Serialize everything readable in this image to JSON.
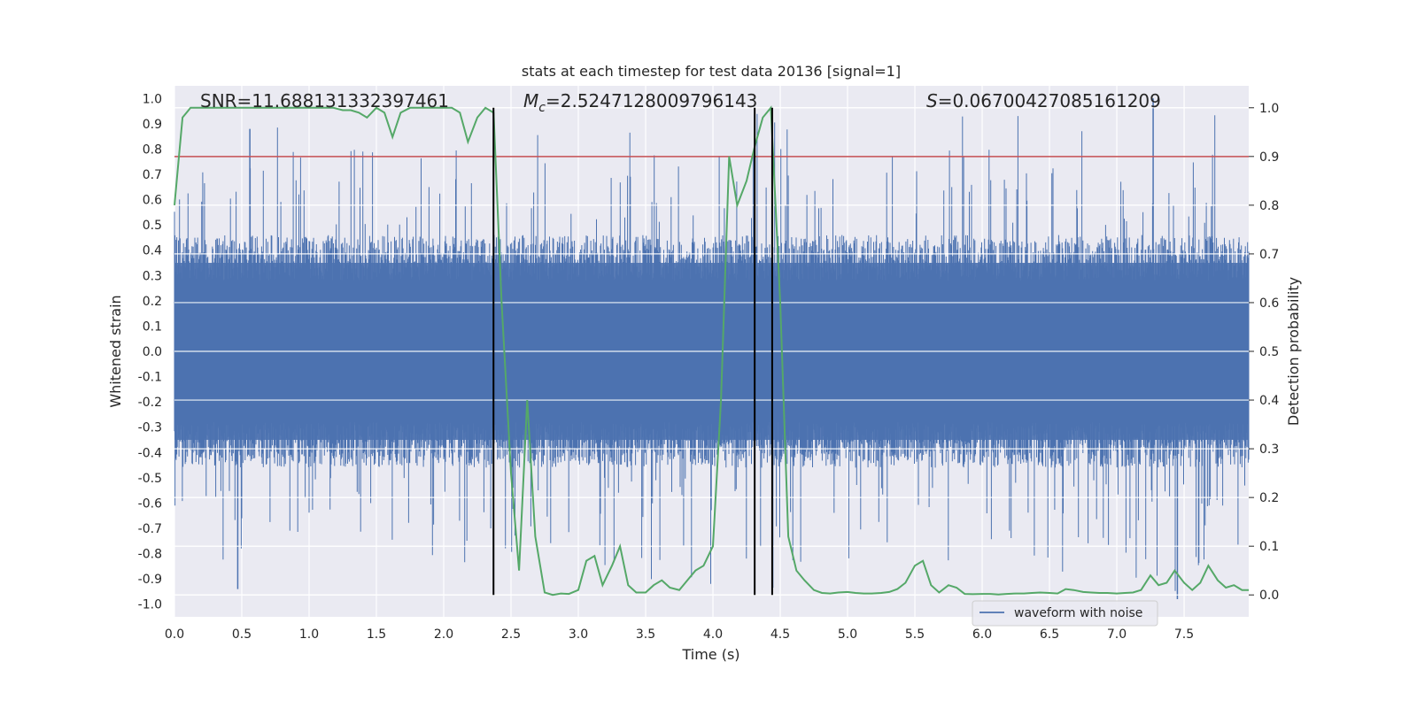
{
  "chart_data": {
    "type": "line",
    "title": "stats at each timestep for test data 20136 [signal=1]",
    "xlabel": "Time (s)",
    "ylabel": "Whitened strain",
    "y2label": "Detection probability",
    "xlim": [
      0.0,
      7.98
    ],
    "ylim": [
      -1.05,
      1.05
    ],
    "y2lim": [
      -0.045,
      1.045
    ],
    "xticks": [
      "0.0",
      "0.5",
      "1.0",
      "1.5",
      "2.0",
      "2.5",
      "3.0",
      "3.5",
      "4.0",
      "4.5",
      "5.0",
      "5.5",
      "6.0",
      "6.5",
      "7.0",
      "7.5"
    ],
    "yticks": [
      "-1.0",
      "-0.9",
      "-0.8",
      "-0.7",
      "-0.6",
      "-0.5",
      "-0.4",
      "-0.3",
      "-0.2",
      "-0.1",
      "0.0",
      "0.1",
      "0.2",
      "0.3",
      "0.4",
      "0.5",
      "0.6",
      "0.7",
      "0.8",
      "0.9",
      "1.0"
    ],
    "y2ticks": [
      "0.0",
      "0.1",
      "0.2",
      "0.3",
      "0.4",
      "0.5",
      "0.6",
      "0.7",
      "0.8",
      "0.9",
      "1.0"
    ],
    "annotations": {
      "snr": "SNR=11.688131332397461",
      "mc_symbol": "M",
      "mc_sub": "c",
      "mc_value": "=2.5247128009796143",
      "s_symbol": "S",
      "s_value": "=0.06700427085161209"
    },
    "legend": {
      "label": "waveform with noise",
      "location": "lower right"
    },
    "threshold": {
      "y2": 0.9,
      "color": "#c44e52"
    },
    "vertical_lines": [
      2.37,
      4.31,
      4.44
    ],
    "series": [
      {
        "name": "waveform with noise",
        "axis": "left",
        "color": "#4c72b0",
        "generated": true,
        "amplitude_core": 0.35,
        "max_peak": 1.0,
        "min_trough": -0.98
      },
      {
        "name": "detection probability",
        "axis": "right",
        "color": "#55a868",
        "x": [
          0.0,
          0.06,
          0.12,
          0.18,
          0.25,
          0.31,
          0.37,
          0.43,
          0.5,
          0.56,
          0.62,
          0.68,
          0.75,
          0.81,
          0.87,
          0.93,
          1.0,
          1.06,
          1.12,
          1.18,
          1.25,
          1.31,
          1.37,
          1.43,
          1.5,
          1.56,
          1.62,
          1.68,
          1.75,
          1.81,
          1.87,
          1.93,
          2.0,
          2.06,
          2.12,
          2.18,
          2.25,
          2.31,
          2.37,
          2.43,
          2.5,
          2.56,
          2.62,
          2.68,
          2.75,
          2.81,
          2.87,
          2.93,
          3.0,
          3.06,
          3.12,
          3.18,
          3.25,
          3.31,
          3.37,
          3.43,
          3.5,
          3.56,
          3.62,
          3.68,
          3.75,
          3.81,
          3.87,
          3.93,
          4.0,
          4.06,
          4.12,
          4.18,
          4.25,
          4.31,
          4.37,
          4.43,
          4.5,
          4.56,
          4.62,
          4.68,
          4.75,
          4.81,
          4.87,
          4.93,
          5.0,
          5.06,
          5.12,
          5.18,
          5.25,
          5.31,
          5.37,
          5.43,
          5.5,
          5.56,
          5.62,
          5.68,
          5.75,
          5.81,
          5.87,
          5.93,
          6.0,
          6.06,
          6.12,
          6.18,
          6.25,
          6.31,
          6.37,
          6.43,
          6.5,
          6.56,
          6.62,
          6.68,
          6.75,
          6.81,
          6.87,
          6.93,
          7.0,
          7.06,
          7.12,
          7.18,
          7.25,
          7.31,
          7.37,
          7.43,
          7.5,
          7.56,
          7.62,
          7.68,
          7.75,
          7.81,
          7.87,
          7.93,
          7.98
        ],
        "y": [
          0.8,
          0.98,
          1.0,
          1.0,
          1.0,
          1.0,
          1.0,
          1.0,
          1.0,
          1.0,
          1.0,
          1.0,
          1.0,
          1.0,
          1.0,
          1.0,
          1.0,
          1.0,
          1.0,
          1.0,
          0.995,
          0.995,
          0.99,
          0.98,
          1.0,
          0.99,
          0.94,
          0.99,
          1.0,
          1.0,
          1.0,
          1.0,
          1.0,
          1.0,
          0.99,
          0.93,
          0.98,
          1.0,
          0.99,
          0.6,
          0.25,
          0.05,
          0.4,
          0.12,
          0.005,
          0.0,
          0.003,
          0.002,
          0.01,
          0.07,
          0.08,
          0.02,
          0.06,
          0.1,
          0.02,
          0.005,
          0.005,
          0.02,
          0.03,
          0.015,
          0.01,
          0.03,
          0.05,
          0.06,
          0.1,
          0.4,
          0.9,
          0.8,
          0.85,
          0.92,
          0.98,
          1.0,
          0.6,
          0.12,
          0.05,
          0.03,
          0.01,
          0.004,
          0.003,
          0.005,
          0.006,
          0.004,
          0.003,
          0.003,
          0.004,
          0.006,
          0.012,
          0.025,
          0.06,
          0.07,
          0.02,
          0.005,
          0.02,
          0.015,
          0.002,
          0.0015,
          0.002,
          0.002,
          0.001,
          0.002,
          0.003,
          0.003,
          0.004,
          0.005,
          0.004,
          0.003,
          0.012,
          0.01,
          0.006,
          0.005,
          0.004,
          0.004,
          0.003,
          0.004,
          0.005,
          0.01,
          0.04,
          0.02,
          0.025,
          0.05,
          0.025,
          0.01,
          0.025,
          0.06,
          0.03,
          0.015,
          0.02,
          0.01,
          0.01
        ]
      }
    ]
  }
}
